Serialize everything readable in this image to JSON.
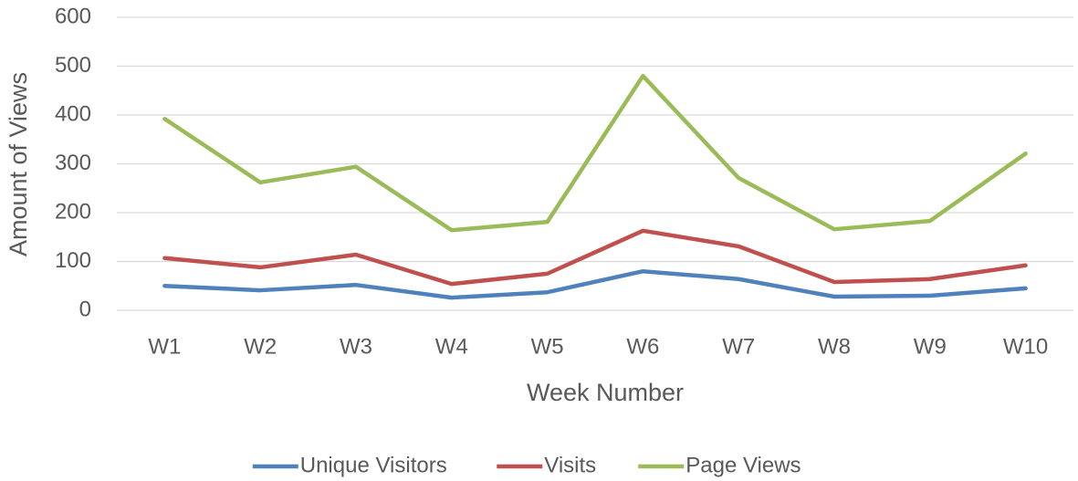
{
  "chart_data": {
    "type": "line",
    "x_label": "Week Number",
    "y_label": "Amount of Views",
    "categories": [
      "W1",
      "W2",
      "W3",
      "W4",
      "W5",
      "W6",
      "W7",
      "W8",
      "W9",
      "W10"
    ],
    "series": [
      {
        "name": "Unique Visitors",
        "color": "#4f81bd",
        "values": [
          50,
          41,
          52,
          26,
          37,
          80,
          64,
          28,
          30,
          45
        ]
      },
      {
        "name": "Visits",
        "color": "#c0504d",
        "values": [
          107,
          88,
          114,
          54,
          75,
          163,
          131,
          58,
          64,
          92
        ]
      },
      {
        "name": "Page Views",
        "color": "#9bbb59",
        "values": [
          392,
          262,
          294,
          164,
          181,
          480,
          271,
          166,
          183,
          321
        ]
      }
    ],
    "ylim": [
      0,
      600
    ],
    "yticks": [
      0,
      100,
      200,
      300,
      400,
      500,
      600
    ],
    "grid": true,
    "legend": "bottom"
  }
}
